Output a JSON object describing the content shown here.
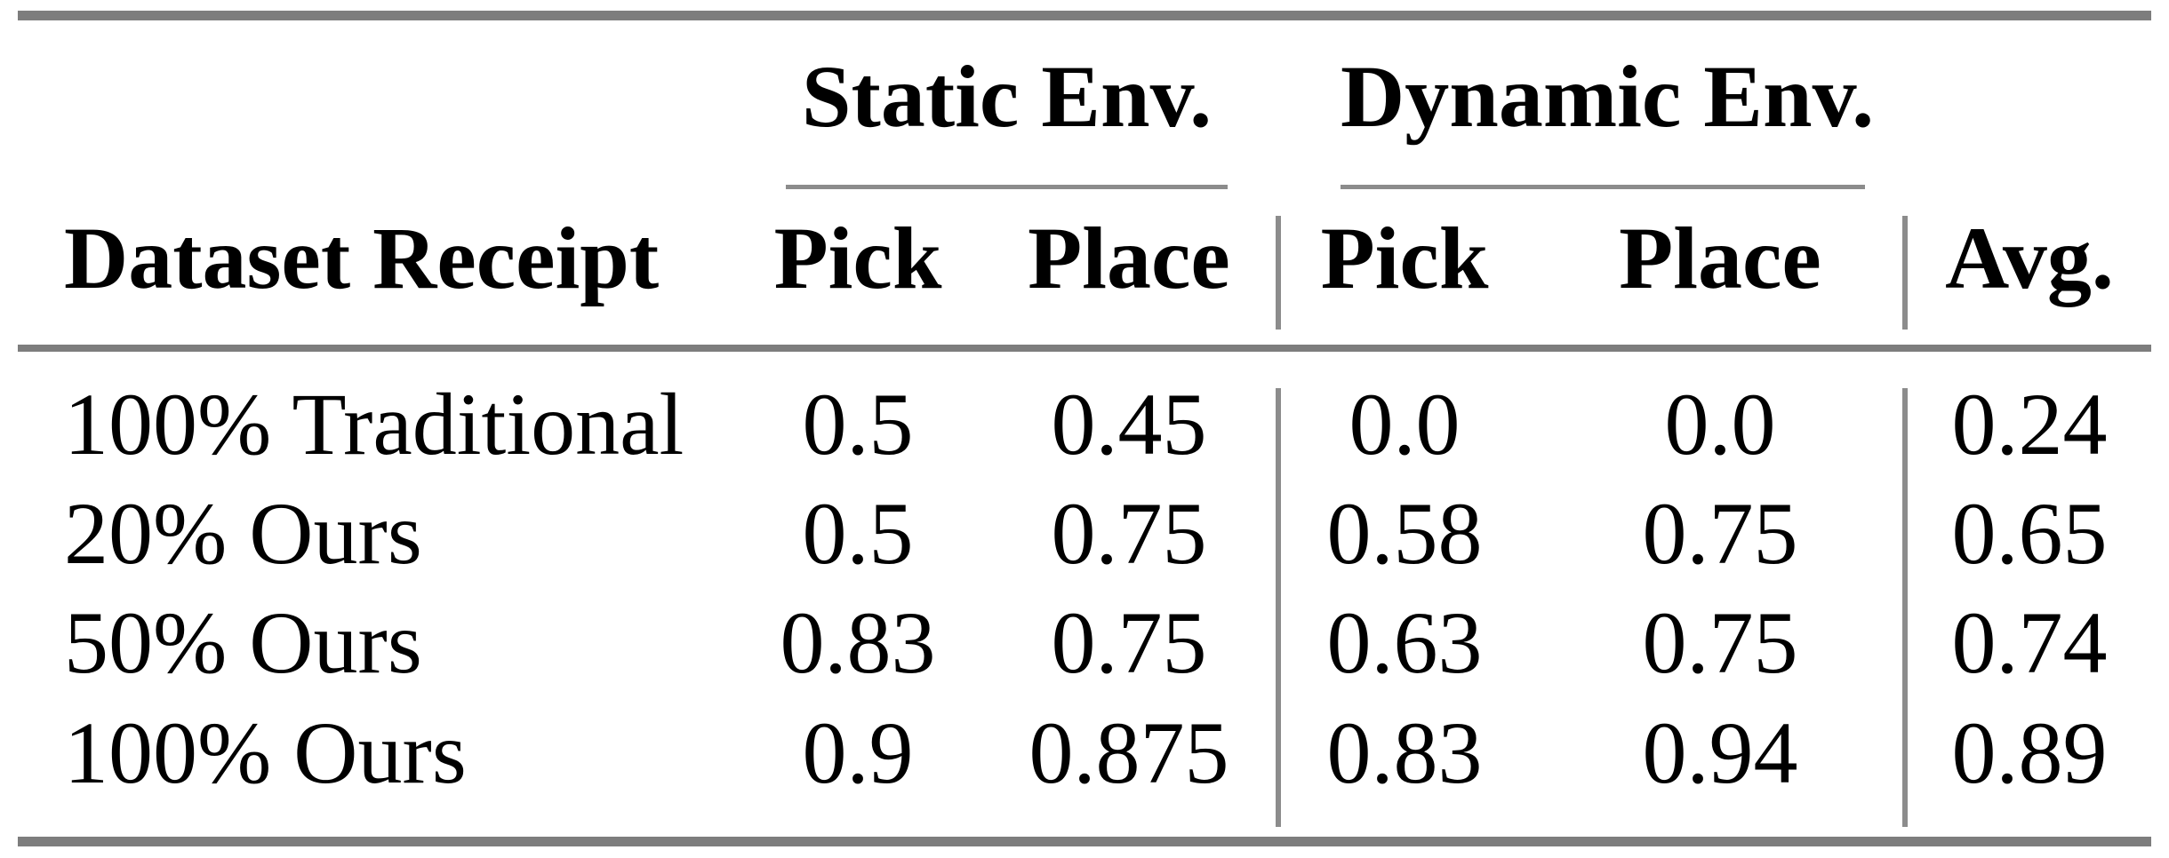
{
  "table": {
    "group_headers": {
      "static": "Static Env.",
      "dynamic": "Dynamic Env."
    },
    "column_headers": {
      "dataset": "Dataset Receipt",
      "static_pick": "Pick",
      "static_place": "Place",
      "dynamic_pick": "Pick",
      "dynamic_place": "Place",
      "avg": "Avg."
    },
    "rows": [
      {
        "label": "100% Traditional",
        "static_pick": "0.5",
        "static_place": "0.45",
        "dynamic_pick": "0.0",
        "dynamic_place": "0.0",
        "avg": "0.24"
      },
      {
        "label": "20% Ours",
        "static_pick": "0.5",
        "static_place": "0.75",
        "dynamic_pick": "0.58",
        "dynamic_place": "0.75",
        "avg": "0.65"
      },
      {
        "label": "50% Ours",
        "static_pick": "0.83",
        "static_place": "0.75",
        "dynamic_pick": "0.63",
        "dynamic_place": "0.75",
        "avg": "0.74"
      },
      {
        "label": "100% Ours",
        "static_pick": "0.9",
        "static_place": "0.875",
        "dynamic_pick": "0.83",
        "dynamic_place": "0.94",
        "avg": "0.89"
      }
    ]
  },
  "colors": {
    "rule_heavy": "#7d7d7d",
    "rule_light": "#8c8c8c",
    "text": "#000000",
    "background": "#ffffff"
  }
}
